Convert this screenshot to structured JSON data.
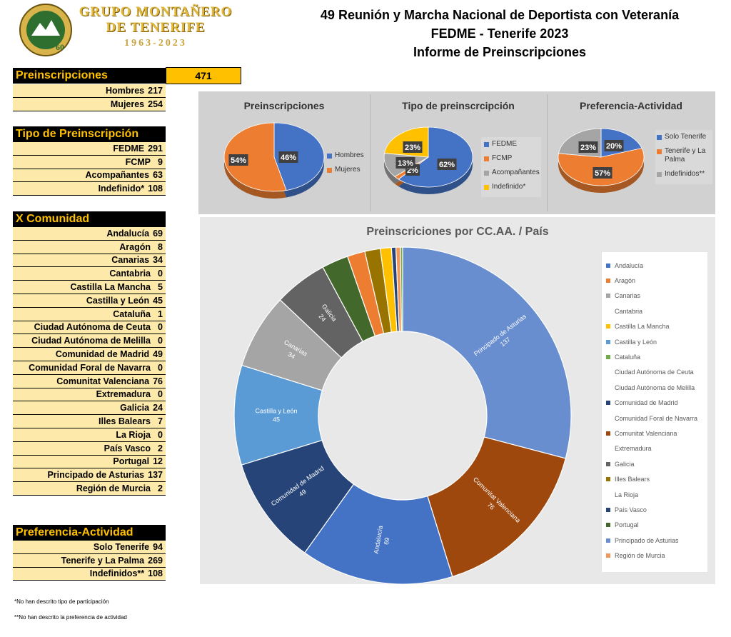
{
  "club": {
    "name_line1": "GRUPO MONTAÑERO",
    "name_line2": "DE TENERIFE",
    "years": "1963-2023",
    "logo_text": "60"
  },
  "title": {
    "line1": "49 Reunión y Marcha Nacional de Deportista con Veteranía",
    "line2": "FEDME - Tenerife 2023",
    "line3": "Informe de Preinscripciones"
  },
  "preinscripciones": {
    "header": "Preinscripciones",
    "total": "471",
    "rows": [
      {
        "label": "Hombres",
        "value": "217"
      },
      {
        "label": "Mujeres",
        "value": "254"
      }
    ]
  },
  "tipo": {
    "header": "Tipo de Preinscripción",
    "rows": [
      {
        "label": "FEDME",
        "value": "291"
      },
      {
        "label": "FCMP",
        "value": "9"
      },
      {
        "label": "Acompañantes",
        "value": "63"
      },
      {
        "label": "Indefinido*",
        "value": "108"
      }
    ]
  },
  "comunidad": {
    "header": "X Comunidad",
    "rows": [
      {
        "label": "Andalucía",
        "value": "69"
      },
      {
        "label": "Aragón",
        "value": "8"
      },
      {
        "label": "Canarias",
        "value": "34"
      },
      {
        "label": "Cantabria",
        "value": "0"
      },
      {
        "label": "Castilla La Mancha",
        "value": "5"
      },
      {
        "label": "Castilla y León",
        "value": "45"
      },
      {
        "label": "Cataluña",
        "value": "1"
      },
      {
        "label": "Ciudad Autónoma de Ceuta",
        "value": "0"
      },
      {
        "label": "Ciudad Autónoma de Melilla",
        "value": "0"
      },
      {
        "label": "Comunidad de Madrid",
        "value": "49"
      },
      {
        "label": "Comunidad Foral de Navarra",
        "value": "0"
      },
      {
        "label": "Comunitat Valenciana",
        "value": "76"
      },
      {
        "label": "Extremadura",
        "value": "0"
      },
      {
        "label": "Galicia",
        "value": "24"
      },
      {
        "label": "Illes Balears",
        "value": "7"
      },
      {
        "label": "La Rioja",
        "value": "0"
      },
      {
        "label": "País Vasco",
        "value": "2"
      },
      {
        "label": "Portugal",
        "value": "12"
      },
      {
        "label": "Principado de Asturias",
        "value": "137"
      },
      {
        "label": "Región de Murcia",
        "value": "2"
      }
    ]
  },
  "preferencia": {
    "header": "Preferencia-Actividad",
    "rows": [
      {
        "label": "Solo Tenerife",
        "value": "94"
      },
      {
        "label": "Tenerife y La Palma",
        "value": "269"
      },
      {
        "label": "Indefinidos**",
        "value": "108"
      }
    ]
  },
  "notes": {
    "note1": "*No han descrito tipo de participación",
    "note2": "**No han descrito la preferencia de actividad"
  },
  "colors": {
    "blue": "#4472c4",
    "orange": "#ed7d31",
    "gray": "#a5a5a5",
    "yellow": "#ffc000",
    "lightblue": "#5b9bd5",
    "green": "#70ad47",
    "navy": "#264478",
    "brown": "#9e480e",
    "darkgray": "#636363",
    "olive": "#997300",
    "darkgreen": "#43682b",
    "periwinkle": "#698ed0",
    "lightorange": "#f1975a",
    "header_bg": "#000000",
    "header_fg": "#ffc000",
    "row_bg": "#fde9a9"
  },
  "chart_data": [
    {
      "type": "pie",
      "title": "Preinscripciones",
      "categories": [
        "Hombres",
        "Mujeres"
      ],
      "values": [
        217,
        254
      ],
      "labels": [
        "46%",
        "54%"
      ],
      "colors": [
        "#4472c4",
        "#ed7d31"
      ],
      "legend_position": "right"
    },
    {
      "type": "pie",
      "title": "Tipo de preinscrcipción",
      "categories": [
        "FEDME",
        "FCMP",
        "Acompañantes",
        "Indefinido*"
      ],
      "values": [
        291,
        9,
        63,
        108
      ],
      "labels": [
        "62%",
        "2%",
        "13%",
        "23%"
      ],
      "colors": [
        "#4472c4",
        "#ed7d31",
        "#a5a5a5",
        "#ffc000"
      ],
      "legend_position": "right"
    },
    {
      "type": "pie",
      "title": "Preferencia-Actividad",
      "categories": [
        "Solo Tenerife",
        "Tenerife y La Palma",
        "Indefinidos**"
      ],
      "values": [
        94,
        269,
        108
      ],
      "labels": [
        "20%",
        "57%",
        "23%"
      ],
      "colors": [
        "#4472c4",
        "#ed7d31",
        "#a5a5a5"
      ],
      "legend_position": "right"
    },
    {
      "type": "pie",
      "subtype": "doughnut",
      "title": "Preinscriciones por CC.AA. / País",
      "categories": [
        "Andalucía",
        "Aragón",
        "Canarias",
        "Cantabria",
        "Castilla La Mancha",
        "Castilla y León",
        "Cataluña",
        "Ciudad Autónoma de Ceuta",
        "Ciudad Autónoma de Melilla",
        "Comunidad de Madrid",
        "Comunidad Foral de Navarra",
        "Comunitat Valenciana",
        "Extremadura",
        "Galicia",
        "Illes Balears",
        "La Rioja",
        "País Vasco",
        "Portugal",
        "Principado de Asturias",
        "Región de Murcia"
      ],
      "values": [
        69,
        8,
        34,
        0,
        5,
        45,
        1,
        0,
        0,
        49,
        0,
        76,
        0,
        24,
        7,
        0,
        2,
        12,
        137,
        2
      ],
      "colors": [
        "#4472c4",
        "#ed7d31",
        "#a5a5a5",
        "#ffc000",
        "#ffc000",
        "#5b9bd5",
        "#70ad47",
        "#264478",
        "#9e480e",
        "#264478",
        "#9e480e",
        "#9e480e",
        "#636363",
        "#636363",
        "#997300",
        "#997300",
        "#264478",
        "#43682b",
        "#698ed0",
        "#f1975a"
      ],
      "legend_swatch": [
        true,
        true,
        true,
        false,
        true,
        true,
        true,
        false,
        false,
        true,
        false,
        true,
        false,
        true,
        true,
        false,
        true,
        true,
        true,
        true
      ],
      "legend_position": "right"
    }
  ]
}
